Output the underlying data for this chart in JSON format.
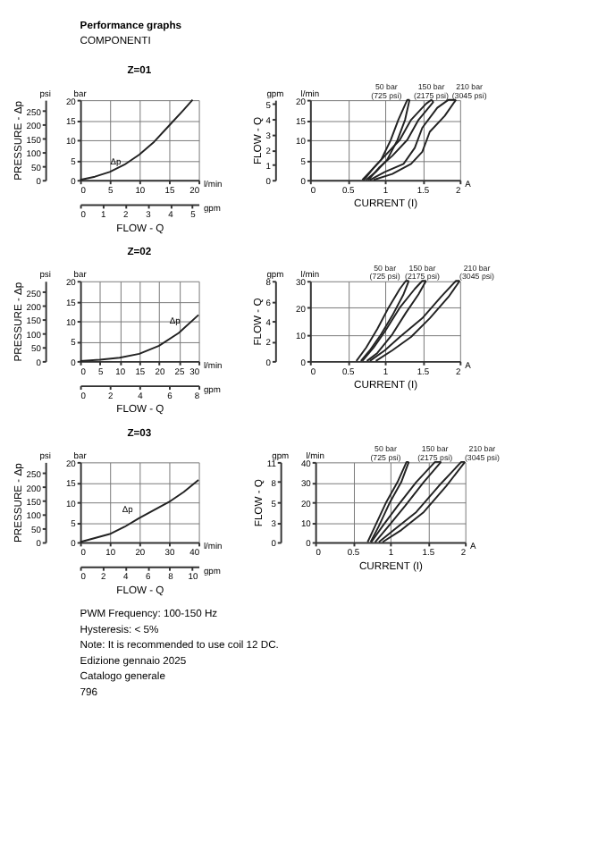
{
  "chart_data": [
    {
      "type": "other",
      "title": "Performance graphs",
      "annotations": [
        "COMPONENTI"
      ]
    },
    {
      "type": "line",
      "title": "Z=01",
      "x2label": "FLOW - Q",
      "y2label": "PRESSURE - Δp",
      "xlim": [
        0,
        20
      ],
      "xticks": [
        0,
        5,
        10,
        15,
        20
      ],
      "x2lim": [
        0,
        5.28
      ],
      "x2ticks": [
        0,
        1,
        2,
        3,
        4,
        5
      ],
      "ylim": [
        0,
        20
      ],
      "yticks": [
        0,
        5,
        10,
        15,
        20
      ],
      "y2lim": [
        0,
        290
      ],
      "y2ticks": [
        0,
        50,
        100,
        150,
        200,
        250
      ],
      "grid": true,
      "annotations": [
        "bar",
        "psi",
        "l/min",
        "gpm",
        {
          "text": "Δp",
          "x": 6,
          "y": 3.5
        }
      ],
      "series": [
        {
          "color": "#222222",
          "x": [
            0,
            2.5,
            5,
            7.5,
            10,
            12.5,
            15,
            17.5,
            19
          ],
          "values": [
            0,
            0.8,
            2,
            3.8,
            6.3,
            9.5,
            13.5,
            17.5,
            20
          ]
        }
      ]
    },
    {
      "type": "line",
      "xlabel": "CURRENT (I)",
      "y2label": "FLOW - Q",
      "xlim": [
        0,
        2
      ],
      "xticks": [
        0,
        0.5,
        1,
        1.5,
        2
      ],
      "ylim": [
        0,
        20
      ],
      "yticks": [
        0,
        5,
        10,
        15,
        20
      ],
      "y2lim": [
        0,
        5.28
      ],
      "y2ticks": [
        0,
        1,
        2,
        3,
        4,
        5
      ],
      "grid": true,
      "annotations": [
        "l/min",
        "gpm",
        "A"
      ],
      "series": [
        {
          "name": "50 bar\n(725 psi)",
          "color": "#222222",
          "x": [
            0.7,
            0.8,
            0.95,
            1.08,
            1.18,
            1.3,
            1.33
          ],
          "values": [
            0,
            2,
            5,
            10,
            15,
            20,
            20
          ]
        },
        {
          "color": "#222222",
          "x": [
            0.75,
            0.88,
            1.03,
            1.17,
            1.27,
            1.33
          ],
          "values": [
            0,
            2,
            5,
            10,
            15,
            20
          ]
        },
        {
          "name": "150 bar\n(2175 psi)",
          "color": "#222222",
          "x": [
            0.72,
            0.85,
            1.0,
            1.2,
            1.35,
            1.55,
            1.62,
            1.65
          ],
          "values": [
            0,
            3,
            6,
            10,
            15,
            19,
            20,
            19.5
          ]
        },
        {
          "color": "#222222",
          "x": [
            0.78,
            0.92,
            1.1,
            1.3,
            1.45,
            1.65
          ],
          "values": [
            0,
            3,
            6,
            10,
            15,
            19.5
          ]
        },
        {
          "name": "210 bar\n(3045 psi)",
          "color": "#222222",
          "x": [
            0.8,
            1.0,
            1.25,
            1.4,
            1.5,
            1.7,
            1.85,
            1.95
          ],
          "values": [
            0,
            2,
            4,
            8,
            13,
            18,
            20,
            20
          ]
        },
        {
          "color": "#222222",
          "x": [
            0.85,
            1.1,
            1.35,
            1.5,
            1.6,
            1.8,
            1.95
          ],
          "values": [
            0,
            1.5,
            4,
            7,
            12,
            16,
            20
          ]
        }
      ]
    },
    {
      "type": "line",
      "title": "Z=02",
      "x2label": "FLOW - Q",
      "y2label": "PRESSURE - Δp",
      "xlim": [
        0,
        30
      ],
      "xticks": [
        0,
        5,
        10,
        15,
        20,
        25,
        30
      ],
      "x2lim": [
        0,
        8
      ],
      "x2ticks": [
        0,
        2,
        4,
        6,
        8
      ],
      "ylim": [
        0,
        20
      ],
      "yticks": [
        0,
        5,
        10,
        15,
        20
      ],
      "y2lim": [
        0,
        290
      ],
      "y2ticks": [
        0,
        50,
        100,
        150,
        200,
        250
      ],
      "grid": true,
      "annotations": [
        "bar",
        "psi",
        "l/min",
        "gpm",
        {
          "text": "Δp",
          "x": 24,
          "y": 9
        }
      ],
      "series": [
        {
          "color": "#222222",
          "x": [
            0,
            5,
            10,
            15,
            20,
            25,
            30
          ],
          "values": [
            0,
            0.3,
            0.8,
            1.8,
            3.8,
            7,
            11.5
          ]
        }
      ]
    },
    {
      "type": "line",
      "xlabel": "CURRENT (I)",
      "y2label": "FLOW - Q",
      "xlim": [
        0,
        2
      ],
      "xticks": [
        0,
        0.5,
        1,
        1.5,
        2
      ],
      "ylim": [
        0,
        30
      ],
      "yticks": [
        0,
        10,
        20,
        30
      ],
      "y2lim": [
        0,
        8
      ],
      "y2ticks": [
        0,
        2,
        4,
        6,
        8
      ],
      "grid": true,
      "annotations": [
        "l/min",
        "gpm",
        "A"
      ],
      "series": [
        {
          "name": "50 bar\n(725 psi)",
          "color": "#222222",
          "x": [
            0.62,
            0.75,
            0.9,
            1.05,
            1.2,
            1.28,
            1.32
          ],
          "values": [
            0,
            5,
            12,
            20,
            27,
            30,
            30
          ]
        },
        {
          "color": "#222222",
          "x": [
            0.68,
            0.8,
            0.95,
            1.1,
            1.25,
            1.32
          ],
          "values": [
            0,
            4,
            10,
            17,
            25,
            30
          ]
        },
        {
          "name": "150 bar\n(2175 psi)",
          "color": "#222222",
          "x": [
            0.7,
            0.85,
            1.0,
            1.2,
            1.4,
            1.5,
            1.55
          ],
          "values": [
            0,
            5,
            11,
            20,
            27,
            30,
            30
          ]
        },
        {
          "color": "#222222",
          "x": [
            0.76,
            0.9,
            1.1,
            1.28,
            1.45,
            1.55
          ],
          "values": [
            0,
            3,
            10,
            18,
            25,
            30
          ]
        },
        {
          "name": "210 bar\n(3045 psi)",
          "color": "#222222",
          "x": [
            0.8,
            1.0,
            1.2,
            1.5,
            1.75,
            1.95,
            2.0
          ],
          "values": [
            0,
            4,
            9,
            16,
            24,
            30,
            30
          ]
        },
        {
          "color": "#222222",
          "x": [
            0.88,
            1.1,
            1.35,
            1.6,
            1.85,
            2.0
          ],
          "values": [
            0,
            4,
            9,
            16,
            24,
            30
          ]
        }
      ]
    },
    {
      "type": "line",
      "title": "Z=03",
      "x2label": "FLOW - Q",
      "y2label": "PRESSURE - Δp",
      "xlim": [
        0,
        40
      ],
      "xticks": [
        0,
        10,
        20,
        30,
        40
      ],
      "x2lim": [
        0,
        10.57
      ],
      "x2ticks": [
        0,
        2,
        4,
        6,
        8,
        10
      ],
      "ylim": [
        0,
        20
      ],
      "yticks": [
        0,
        5,
        10,
        15,
        20
      ],
      "y2lim": [
        0,
        290
      ],
      "y2ticks": [
        0,
        50,
        100,
        150,
        200,
        250
      ],
      "grid": true,
      "annotations": [
        "bar",
        "psi",
        "l/min",
        "gpm",
        {
          "text": "Δp",
          "x": 16,
          "y": 7
        }
      ],
      "series": [
        {
          "color": "#222222",
          "x": [
            0,
            5,
            10,
            15,
            20,
            25,
            30,
            35,
            40
          ],
          "values": [
            0,
            1,
            2,
            3.8,
            6,
            8,
            10,
            12.5,
            15.5
          ]
        }
      ]
    },
    {
      "type": "line",
      "xlabel": "CURRENT (I)",
      "y2label": "FLOW - Q",
      "xlim": [
        0,
        2
      ],
      "xticks": [
        0,
        0.5,
        1,
        1.5,
        2
      ],
      "ylim": [
        0,
        40
      ],
      "yticks": [
        0,
        10,
        20,
        30,
        40
      ],
      "y2lim": [
        0,
        10.57
      ],
      "y2ticks": [
        0,
        {
          "value": 2.64,
          "label": "3"
        },
        {
          "value": 5.28,
          "label": "5"
        },
        {
          "value": 7.93,
          "label": "8"
        },
        {
          "value": 10.57,
          "label": "11"
        }
      ],
      "grid": true,
      "annotations": [
        "l/min",
        "gpm",
        "A"
      ],
      "series": [
        {
          "name": "50 bar\n(725 psi)",
          "color": "#222222",
          "x": [
            0.7,
            0.8,
            0.95,
            1.1,
            1.22,
            1.25
          ],
          "values": [
            0,
            8,
            20,
            30,
            40,
            40
          ]
        },
        {
          "color": "#222222",
          "x": [
            0.74,
            0.85,
            1.0,
            1.15,
            1.25
          ],
          "values": [
            0,
            8,
            20,
            30,
            40
          ]
        },
        {
          "name": "150 bar\n(2175 psi)",
          "color": "#222222",
          "x": [
            0.75,
            0.9,
            1.1,
            1.35,
            1.6,
            1.68
          ],
          "values": [
            0,
            8,
            18,
            30,
            40,
            40
          ]
        },
        {
          "color": "#222222",
          "x": [
            0.8,
            0.98,
            1.2,
            1.45,
            1.68
          ],
          "values": [
            0,
            8,
            18,
            30,
            40
          ]
        },
        {
          "name": "210 bar\n(3045 psi)",
          "color": "#222222",
          "x": [
            0.85,
            1.05,
            1.35,
            1.65,
            1.95,
            2.0
          ],
          "values": [
            0,
            6,
            15,
            28,
            40,
            40
          ]
        },
        {
          "color": "#222222",
          "x": [
            0.9,
            1.15,
            1.45,
            1.75,
            2.0
          ],
          "values": [
            0,
            6,
            15,
            28,
            40
          ]
        }
      ]
    },
    {
      "type": "other",
      "annotations": [
        "PWM Frequency: 100-150 Hz",
        "Hysteresis: < 5%",
        "Note: It is recommended to use coil 12 DC.",
        "Edizione gennaio 2025",
        "Catalogo generale",
        "796"
      ]
    }
  ]
}
